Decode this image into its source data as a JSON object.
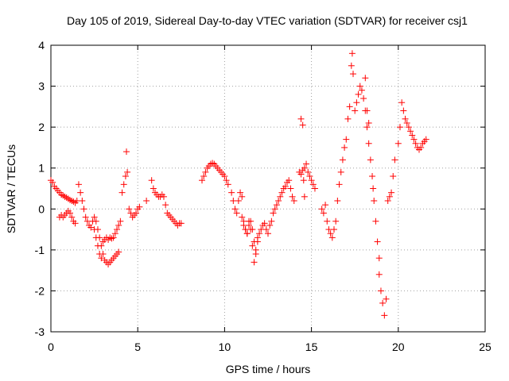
{
  "chart_data": {
    "type": "scatter",
    "title": "Day 105 of 2019, Sidereal Day-to-day VTEC variation (SDTVAR) for receiver csj1",
    "xlabel": "GPS time / hours",
    "ylabel": "SDTVAR / TECUs",
    "xlim": [
      0,
      25
    ],
    "ylim": [
      -3,
      4
    ],
    "xticks": [
      0,
      5,
      10,
      15,
      20,
      25
    ],
    "yticks": [
      -3,
      -2,
      -1,
      0,
      1,
      2,
      3,
      4
    ],
    "grid": true,
    "marker": "plus",
    "color": "#ff0000",
    "series": [
      {
        "name": "SDTVAR",
        "x": [
          0.0,
          0.1,
          0.2,
          0.3,
          0.4,
          0.5,
          0.6,
          0.7,
          0.8,
          0.9,
          1.0,
          1.1,
          1.2,
          1.3,
          1.4,
          1.5,
          0.5,
          0.6,
          0.7,
          0.8,
          0.9,
          1.0,
          1.1,
          1.2,
          1.3,
          1.4,
          1.6,
          1.7,
          1.8,
          1.9,
          2.0,
          2.1,
          2.2,
          2.3,
          2.4,
          2.5,
          2.6,
          2.7,
          2.8,
          2.9,
          3.0,
          3.1,
          3.2,
          3.3,
          3.4,
          3.5,
          3.6,
          3.7,
          3.8,
          3.9,
          4.0,
          2.5,
          2.6,
          2.7,
          2.8,
          2.9,
          3.0,
          3.1,
          3.2,
          3.3,
          3.4,
          3.5,
          3.6,
          3.7,
          3.8,
          3.9,
          4.1,
          4.2,
          4.3,
          4.35,
          4.4,
          4.5,
          4.6,
          4.7,
          4.8,
          4.9,
          5.0,
          5.1,
          5.5,
          5.8,
          5.9,
          6.0,
          6.1,
          6.2,
          6.3,
          6.4,
          6.5,
          6.6,
          6.7,
          6.8,
          6.9,
          7.0,
          7.1,
          7.2,
          7.3,
          7.4,
          7.5,
          8.7,
          8.8,
          8.9,
          9.0,
          9.1,
          9.2,
          9.3,
          9.4,
          9.5,
          9.6,
          9.7,
          9.8,
          9.9,
          10.0,
          10.1,
          10.2,
          10.4,
          10.5,
          10.6,
          10.7,
          10.8,
          10.9,
          11.0,
          11.1,
          11.2,
          11.3,
          11.4,
          11.5,
          11.6,
          11.7,
          11.8,
          11.9,
          12.0,
          12.1,
          12.2,
          12.3,
          12.4,
          12.5,
          12.6,
          12.7,
          12.8,
          12.9,
          13.0,
          13.1,
          13.2,
          13.3,
          13.4,
          13.5,
          13.6,
          13.7,
          13.8,
          13.9,
          14.0,
          11.0,
          11.1,
          11.2,
          11.3,
          11.4,
          11.5,
          11.6,
          11.7,
          11.8,
          11.9,
          14.3,
          14.4,
          14.5,
          14.55,
          14.6,
          14.7,
          14.8,
          14.9,
          15.0,
          15.1,
          15.2,
          14.4,
          14.5,
          14.6,
          15.6,
          15.7,
          15.8,
          15.9,
          16.0,
          16.1,
          16.2,
          16.3,
          16.4,
          16.5,
          16.6,
          16.7,
          16.8,
          16.9,
          17.0,
          17.1,
          17.2,
          17.3,
          17.35,
          17.4,
          17.5,
          17.6,
          17.7,
          17.8,
          17.9,
          18.0,
          18.1,
          18.2,
          18.3,
          18.1,
          18.2,
          18.3,
          18.4,
          18.5,
          18.55,
          18.6,
          18.7,
          18.8,
          18.9,
          18.9,
          19.0,
          19.1,
          19.2,
          19.3,
          19.4,
          19.5,
          19.6,
          19.7,
          19.8,
          20.0,
          20.1,
          20.2,
          20.3,
          20.4,
          20.5,
          20.6,
          20.7,
          20.8,
          20.9,
          21.0,
          21.1,
          21.2,
          21.3,
          21.4,
          21.5,
          21.6
        ],
        "y": [
          0.7,
          0.65,
          0.55,
          0.5,
          0.45,
          0.4,
          0.35,
          0.33,
          0.3,
          0.28,
          0.25,
          0.22,
          0.2,
          0.18,
          0.15,
          0.2,
          -0.2,
          -0.15,
          -0.2,
          -0.15,
          -0.1,
          -0.05,
          -0.1,
          -0.2,
          -0.3,
          -0.35,
          0.6,
          0.4,
          0.2,
          0.0,
          -0.2,
          -0.3,
          -0.4,
          -0.45,
          -0.3,
          -0.5,
          -0.7,
          -0.9,
          -1.1,
          -1.2,
          -0.8,
          -0.75,
          -0.7,
          -0.75,
          -0.7,
          -0.72,
          -0.7,
          -0.6,
          -0.5,
          -0.4,
          -0.3,
          -0.2,
          -0.3,
          -0.5,
          -0.7,
          -0.9,
          -1.1,
          -1.25,
          -1.3,
          -1.35,
          -1.3,
          -1.25,
          -1.2,
          -1.15,
          -1.1,
          -1.05,
          0.4,
          0.6,
          0.8,
          1.4,
          0.9,
          0.0,
          -0.1,
          -0.2,
          -0.15,
          -0.1,
          0.0,
          0.05,
          0.2,
          0.7,
          0.5,
          0.4,
          0.35,
          0.3,
          0.3,
          0.35,
          0.3,
          0.1,
          -0.1,
          -0.15,
          -0.2,
          -0.25,
          -0.3,
          -0.35,
          -0.4,
          -0.35,
          -0.35,
          0.7,
          0.8,
          0.9,
          1.0,
          1.05,
          1.1,
          1.12,
          1.1,
          1.05,
          1.0,
          0.95,
          0.9,
          0.85,
          0.8,
          0.7,
          0.6,
          0.4,
          0.2,
          0.0,
          -0.1,
          0.2,
          0.4,
          0.3,
          -0.3,
          -0.5,
          -0.6,
          -0.3,
          -0.5,
          -0.9,
          -1.3,
          -1.1,
          -0.8,
          -0.6,
          -0.5,
          -0.4,
          -0.35,
          -0.5,
          -0.6,
          -0.4,
          -0.3,
          -0.1,
          0.0,
          0.1,
          0.2,
          0.3,
          0.4,
          0.5,
          0.55,
          0.65,
          0.7,
          0.5,
          0.3,
          0.2,
          -0.2,
          -0.4,
          -0.5,
          -0.6,
          -0.4,
          -0.3,
          -0.5,
          -0.8,
          -1.0,
          -0.7,
          0.9,
          2.2,
          2.05,
          0.7,
          1.0,
          1.1,
          0.9,
          0.8,
          0.7,
          0.6,
          0.5,
          0.85,
          0.95,
          0.3,
          0.0,
          -0.1,
          0.1,
          -0.3,
          -0.5,
          -0.6,
          -0.7,
          -0.5,
          -0.3,
          0.2,
          0.6,
          0.9,
          1.2,
          1.5,
          1.7,
          2.2,
          2.5,
          3.5,
          3.8,
          3.3,
          2.4,
          2.6,
          2.8,
          3.0,
          2.9,
          2.7,
          3.2,
          2.4,
          2.1,
          2.4,
          2.0,
          1.6,
          1.2,
          0.8,
          0.5,
          0.2,
          -0.3,
          -0.8,
          -1.2,
          -1.6,
          -2.0,
          -2.3,
          -2.6,
          -2.2,
          0.2,
          0.3,
          0.4,
          0.8,
          1.2,
          1.6,
          2.0,
          2.6,
          2.4,
          2.2,
          2.1,
          2.0,
          1.9,
          1.8,
          1.7,
          1.6,
          1.5,
          1.45,
          1.5,
          1.6,
          1.65,
          1.7
        ]
      }
    ]
  }
}
